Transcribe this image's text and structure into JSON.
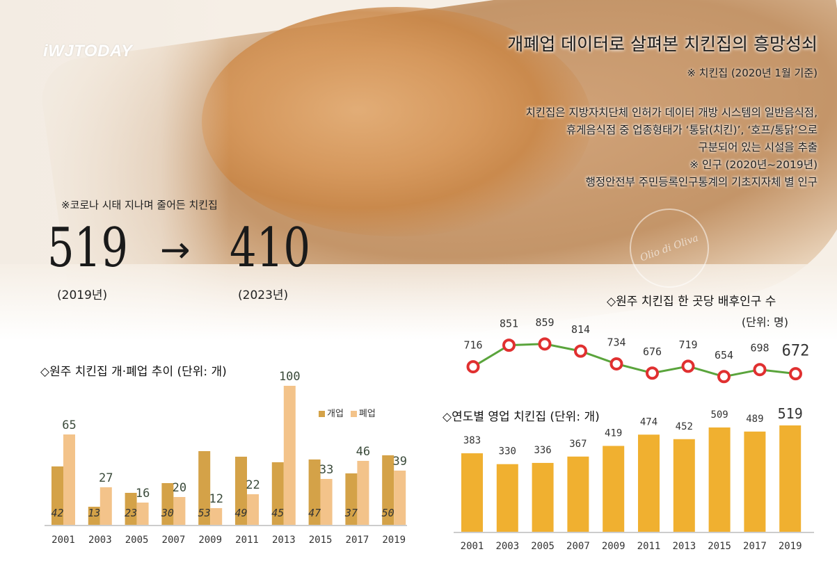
{
  "branding": {
    "logo_text": "iWJTODAY",
    "stamp_text": "Olio di Oliva"
  },
  "header": {
    "title": "개폐업 데이터로 살펴본 치킨집의 흥망성쇠",
    "note_chicken": "※ 치킨집 (2020년 1월 기준)",
    "description_lines": [
      "치킨집은 지방자치단체 인허가 데이터 개방 시스템의 일반음식점,",
      "휴게음식점 중 업종형태가 ‘통닭(치킨)’, ‘호프/통닭’으로",
      "구분되어 있는 시설을 추출",
      "※ 인구 (2020년~2019년)",
      "행정안전부 주민등록인구통계의 기초지자체 별 인구"
    ]
  },
  "highlight": {
    "note": "※코로나 시태 지나며 줄어든 치킨집",
    "from_value": "519",
    "to_value": "410",
    "arrow": "→",
    "from_year": "(2019년)",
    "to_year": "(2023년)"
  },
  "chart_data": [
    {
      "type": "bar",
      "title": "◇원주 치킨집 개·폐업 추이 (단위: 개)",
      "categories": [
        "2001",
        "2003",
        "2005",
        "2007",
        "2009",
        "2011",
        "2013",
        "2015",
        "2017",
        "2019"
      ],
      "series": [
        {
          "name": "개업",
          "color": "#d4a248",
          "values": [
            42,
            13,
            23,
            30,
            53,
            49,
            45,
            47,
            37,
            50
          ]
        },
        {
          "name": "폐업",
          "color": "#f3c38a",
          "values": [
            65,
            27,
            16,
            20,
            12,
            22,
            100,
            33,
            46,
            39
          ]
        }
      ],
      "ylim": [
        0,
        105
      ]
    },
    {
      "type": "line",
      "title": "◇원주 치킨집 한 곳당 배후인구 수",
      "unit": "(단위: 명)",
      "x": [
        "2001",
        "2003",
        "2005",
        "2007",
        "2009",
        "2011",
        "2013",
        "2015",
        "2017",
        "2019"
      ],
      "values": [
        716,
        851,
        859,
        814,
        734,
        676,
        719,
        654,
        698,
        672
      ],
      "line_color": "#5aa43c",
      "marker_color": "#e03030"
    },
    {
      "type": "bar",
      "title": "◇연도별 영업 치킨집  (단위: 개)",
      "categories": [
        "2001",
        "2003",
        "2005",
        "2007",
        "2009",
        "2011",
        "2013",
        "2015",
        "2017",
        "2019"
      ],
      "values": [
        383,
        330,
        336,
        367,
        419,
        474,
        452,
        509,
        489,
        519
      ],
      "color": "#f0b030",
      "ylim": [
        0,
        530
      ]
    }
  ]
}
